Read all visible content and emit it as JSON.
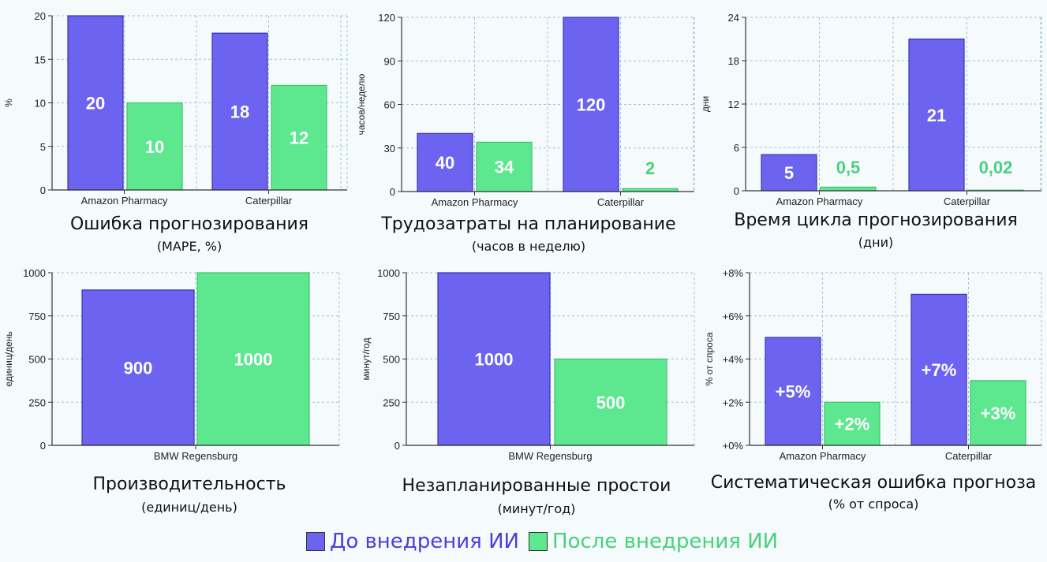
{
  "colors": {
    "before": "#6c63f0",
    "after": "#5de88f",
    "before_text": "#4a3fd8",
    "after_text": "#48d27a"
  },
  "legend": {
    "before_label": "До внедрения ИИ",
    "after_label": "После внедрения ИИ"
  },
  "chart_data": [
    {
      "type": "bar",
      "title": "Ошибка прогнозирования",
      "subtitle": "(MAPE, %)",
      "ylabel": "%",
      "categories": [
        "Amazon Pharmacy",
        "Caterpillar"
      ],
      "ylim": [
        0,
        20
      ],
      "yticks": [
        "0",
        "5",
        "10",
        "15",
        "20"
      ],
      "series": [
        {
          "name": "До внедрения ИИ",
          "values": [
            20,
            18
          ],
          "labels": [
            "20",
            "18"
          ]
        },
        {
          "name": "После внедрения ИИ",
          "values": [
            10,
            12
          ],
          "labels": [
            "10",
            "12"
          ]
        }
      ]
    },
    {
      "type": "bar",
      "title": "Трудозатраты на планирование",
      "subtitle": "(часов в неделю)",
      "ylabel": "часов/неделю",
      "categories": [
        "Amazon Pharmacy",
        "Caterpillar"
      ],
      "ylim": [
        0,
        120
      ],
      "yticks": [
        "0",
        "30",
        "60",
        "90",
        "120"
      ],
      "series": [
        {
          "name": "До внедрения ИИ",
          "values": [
            40,
            120
          ],
          "labels": [
            "40",
            "120"
          ]
        },
        {
          "name": "После внедрения ИИ",
          "values": [
            34,
            2
          ],
          "labels": [
            "34",
            "2"
          ]
        }
      ]
    },
    {
      "type": "bar",
      "title": "Время цикла прогнозирования",
      "subtitle": "(дни)",
      "ylabel": "дни",
      "categories": [
        "Amazon Pharmacy",
        "Caterpillar"
      ],
      "ylim": [
        0,
        24
      ],
      "yticks": [
        "0",
        "6",
        "12",
        "18",
        "24"
      ],
      "series": [
        {
          "name": "До внедрения ИИ",
          "values": [
            5,
            21
          ],
          "labels": [
            "5",
            "21"
          ]
        },
        {
          "name": "После внедрения ИИ",
          "values": [
            0.5,
            0.02
          ],
          "labels": [
            "0,5",
            "0,02"
          ]
        }
      ]
    },
    {
      "type": "bar",
      "title": "Производительность",
      "subtitle": "(единиц/день)",
      "ylabel": "единиц/день",
      "categories": [
        "BMW Regensburg"
      ],
      "ylim": [
        0,
        1000
      ],
      "yticks": [
        "0",
        "250",
        "500",
        "750",
        "1000"
      ],
      "series": [
        {
          "name": "До внедрения ИИ",
          "values": [
            900
          ],
          "labels": [
            "900"
          ]
        },
        {
          "name": "После внедрения ИИ",
          "values": [
            1000
          ],
          "labels": [
            "1000"
          ]
        }
      ]
    },
    {
      "type": "bar",
      "title": "Незапланированные простои",
      "subtitle": "(минут/год)",
      "ylabel": "минут/год",
      "categories": [
        "BMW Regensburg"
      ],
      "ylim": [
        0,
        1000
      ],
      "yticks": [
        "0",
        "250",
        "500",
        "750",
        "1000"
      ],
      "series": [
        {
          "name": "До внедрения ИИ",
          "values": [
            1000
          ],
          "labels": [
            "1000"
          ]
        },
        {
          "name": "После внедрения ИИ",
          "values": [
            500
          ],
          "labels": [
            "500"
          ]
        }
      ]
    },
    {
      "type": "bar",
      "title": "Систематическая ошибка прогноза",
      "subtitle": "(% от спроса)",
      "ylabel": "% от спроса",
      "categories": [
        "Amazon Pharmacy",
        "Caterpillar"
      ],
      "ylim": [
        0,
        8
      ],
      "yticks": [
        "+0%",
        "+2%",
        "+4%",
        "+6%",
        "+8%"
      ],
      "series": [
        {
          "name": "До внедрения ИИ",
          "values": [
            5,
            7
          ],
          "labels": [
            "+5%",
            "+7%"
          ]
        },
        {
          "name": "После внедрения ИИ",
          "values": [
            2,
            3
          ],
          "labels": [
            "+2%",
            "+3%"
          ]
        }
      ]
    }
  ]
}
